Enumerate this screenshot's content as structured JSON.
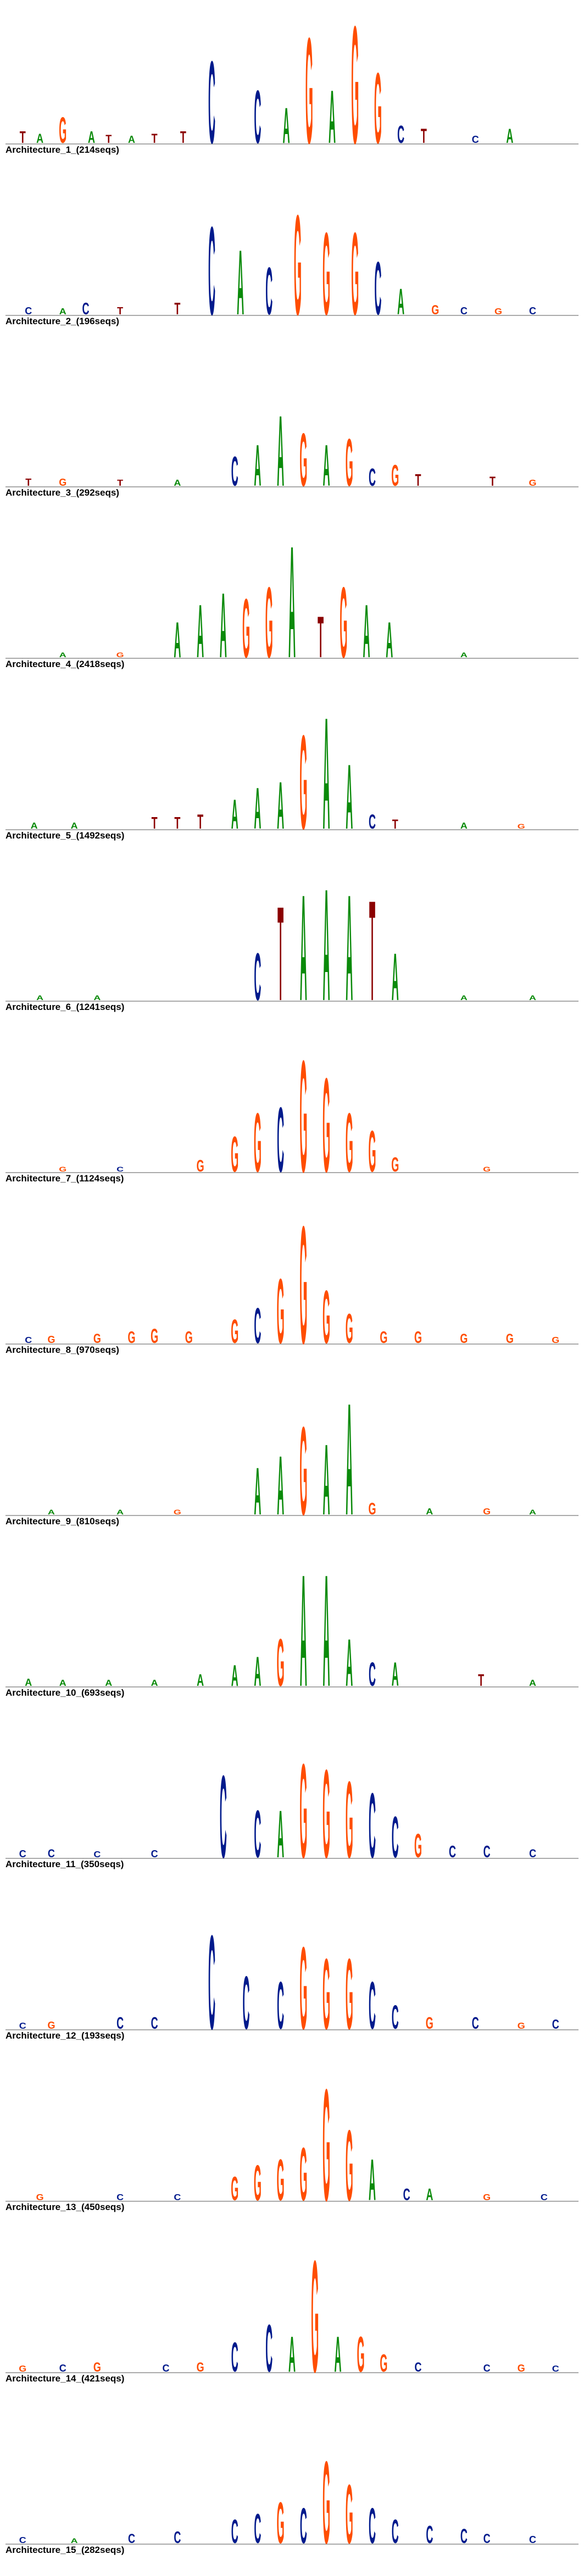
{
  "colors": {
    "A": "#0a8a0a",
    "C": "#001a8c",
    "G": "#ff4d00",
    "T": "#8b0000",
    "baseline": "#777777",
    "label": "#000000"
  },
  "architectures": [
    {
      "label": "Architecture_1_(214seqs)",
      "motif": [
        {
          "i": 10,
          "l": "G",
          "h": 0.22
        },
        {
          "i": 15,
          "l": "A",
          "h": 0.1
        },
        {
          "i": 36,
          "l": "C",
          "h": 0.7
        },
        {
          "i": 44,
          "l": "C",
          "h": 0.45
        },
        {
          "i": 49,
          "l": "A",
          "h": 0.3
        },
        {
          "i": 53,
          "l": "G",
          "h": 0.9
        },
        {
          "i": 57,
          "l": "A",
          "h": 0.45
        },
        {
          "i": 61,
          "l": "G",
          "h": 1.0
        },
        {
          "i": 65,
          "l": "G",
          "h": 0.6
        },
        {
          "i": 69,
          "l": "C",
          "h": 0.15
        },
        {
          "i": 73,
          "l": "T",
          "h": 0.12
        },
        {
          "i": 88,
          "l": "A",
          "h": 0.12
        }
      ],
      "sparse": [
        [
          3,
          "T",
          0.1
        ],
        [
          6,
          "A",
          0.08
        ],
        [
          18,
          "T",
          0.07
        ],
        [
          22,
          "A",
          0.06
        ],
        [
          26,
          "T",
          0.08
        ],
        [
          31,
          "T",
          0.1
        ],
        [
          82,
          "C",
          0.06
        ]
      ]
    },
    {
      "label": "Architecture_2_(196seqs)",
      "motif": [
        {
          "i": 14,
          "l": "C",
          "h": 0.1
        },
        {
          "i": 30,
          "l": "T",
          "h": 0.1
        },
        {
          "i": 36,
          "l": "C",
          "h": 0.75
        },
        {
          "i": 41,
          "l": "A",
          "h": 0.55
        },
        {
          "i": 46,
          "l": "C",
          "h": 0.4
        },
        {
          "i": 51,
          "l": "G",
          "h": 0.85
        },
        {
          "i": 56,
          "l": "G",
          "h": 0.7
        },
        {
          "i": 61,
          "l": "G",
          "h": 0.7
        },
        {
          "i": 65,
          "l": "C",
          "h": 0.45
        },
        {
          "i": 69,
          "l": "A",
          "h": 0.22
        },
        {
          "i": 75,
          "l": "G",
          "h": 0.08
        }
      ],
      "sparse": [
        [
          4,
          "C",
          0.06
        ],
        [
          10,
          "A",
          0.05
        ],
        [
          20,
          "T",
          0.06
        ],
        [
          80,
          "C",
          0.06
        ],
        [
          86,
          "G",
          0.05
        ],
        [
          92,
          "C",
          0.06
        ]
      ]
    },
    {
      "label": "Architecture_3_(292seqs)",
      "motif": [
        {
          "i": 40,
          "l": "C",
          "h": 0.25
        },
        {
          "i": 44,
          "l": "A",
          "h": 0.35
        },
        {
          "i": 48,
          "l": "A",
          "h": 0.6
        },
        {
          "i": 52,
          "l": "G",
          "h": 0.45
        },
        {
          "i": 56,
          "l": "A",
          "h": 0.35
        },
        {
          "i": 60,
          "l": "G",
          "h": 0.4
        },
        {
          "i": 64,
          "l": "C",
          "h": 0.15
        },
        {
          "i": 68,
          "l": "G",
          "h": 0.18
        },
        {
          "i": 72,
          "l": "T",
          "h": 0.1
        },
        {
          "i": 85,
          "l": "T",
          "h": 0.08
        }
      ],
      "sparse": [
        [
          4,
          "T",
          0.06
        ],
        [
          10,
          "G",
          0.06
        ],
        [
          20,
          "T",
          0.05
        ],
        [
          30,
          "A",
          0.05
        ],
        [
          92,
          "G",
          0.05
        ]
      ]
    },
    {
      "label": "Architecture_4_(2418seqs)",
      "motif": [
        {
          "i": 30,
          "l": "A",
          "h": 0.3
        },
        {
          "i": 34,
          "l": "A",
          "h": 0.45
        },
        {
          "i": 38,
          "l": "A",
          "h": 0.55
        },
        {
          "i": 42,
          "l": "G",
          "h": 0.5
        },
        {
          "i": 46,
          "l": "G",
          "h": 0.6
        },
        {
          "i": 50,
          "l": "A",
          "h": 0.95
        },
        {
          "i": 55,
          "l": "T",
          "h": 0.35
        },
        {
          "i": 59,
          "l": "G",
          "h": 0.6
        },
        {
          "i": 63,
          "l": "A",
          "h": 0.45
        },
        {
          "i": 67,
          "l": "A",
          "h": 0.3
        }
      ],
      "sparse": [
        [
          10,
          "A",
          0.04
        ],
        [
          20,
          "G",
          0.04
        ],
        [
          80,
          "A",
          0.04
        ]
      ]
    },
    {
      "label": "Architecture_5_(1492seqs)",
      "motif": [
        {
          "i": 26,
          "l": "T",
          "h": 0.1
        },
        {
          "i": 30,
          "l": "T",
          "h": 0.1
        },
        {
          "i": 34,
          "l": "T",
          "h": 0.12
        },
        {
          "i": 40,
          "l": "A",
          "h": 0.25
        },
        {
          "i": 44,
          "l": "A",
          "h": 0.35
        },
        {
          "i": 48,
          "l": "A",
          "h": 0.4
        },
        {
          "i": 52,
          "l": "G",
          "h": 0.8
        },
        {
          "i": 56,
          "l": "A",
          "h": 0.95
        },
        {
          "i": 60,
          "l": "A",
          "h": 0.55
        },
        {
          "i": 64,
          "l": "C",
          "h": 0.12
        },
        {
          "i": 68,
          "l": "T",
          "h": 0.08
        }
      ],
      "sparse": [
        [
          5,
          "A",
          0.05
        ],
        [
          12,
          "A",
          0.05
        ],
        [
          80,
          "A",
          0.05
        ],
        [
          90,
          "G",
          0.04
        ]
      ]
    },
    {
      "label": "Architecture_6_(1241seqs)",
      "motif": [
        {
          "i": 44,
          "l": "C",
          "h": 0.4
        },
        {
          "i": 48,
          "l": "T",
          "h": 0.8
        },
        {
          "i": 52,
          "l": "A",
          "h": 0.9
        },
        {
          "i": 56,
          "l": "A",
          "h": 0.95
        },
        {
          "i": 60,
          "l": "A",
          "h": 0.9
        },
        {
          "i": 64,
          "l": "T",
          "h": 0.85
        },
        {
          "i": 68,
          "l": "A",
          "h": 0.4
        }
      ],
      "sparse": [
        [
          6,
          "A",
          0.04
        ],
        [
          16,
          "A",
          0.04
        ],
        [
          80,
          "A",
          0.04
        ],
        [
          92,
          "A",
          0.04
        ]
      ]
    },
    {
      "label": "Architecture_7_(1124seqs)",
      "motif": [
        {
          "i": 34,
          "l": "G",
          "h": 0.1
        },
        {
          "i": 40,
          "l": "G",
          "h": 0.3
        },
        {
          "i": 44,
          "l": "G",
          "h": 0.5
        },
        {
          "i": 48,
          "l": "C",
          "h": 0.55
        },
        {
          "i": 52,
          "l": "G",
          "h": 0.95
        },
        {
          "i": 56,
          "l": "G",
          "h": 0.8
        },
        {
          "i": 60,
          "l": "G",
          "h": 0.5
        },
        {
          "i": 64,
          "l": "G",
          "h": 0.35
        },
        {
          "i": 68,
          "l": "G",
          "h": 0.12
        }
      ],
      "sparse": [
        [
          10,
          "G",
          0.04
        ],
        [
          20,
          "C",
          0.04
        ],
        [
          84,
          "G",
          0.04
        ]
      ]
    },
    {
      "label": "Architecture_8_(970seqs)",
      "motif": [
        {
          "i": 8,
          "l": "G",
          "h": 0.06
        },
        {
          "i": 16,
          "l": "G",
          "h": 0.08
        },
        {
          "i": 22,
          "l": "G",
          "h": 0.1
        },
        {
          "i": 26,
          "l": "G",
          "h": 0.12
        },
        {
          "i": 32,
          "l": "G",
          "h": 0.1
        },
        {
          "i": 40,
          "l": "G",
          "h": 0.2
        },
        {
          "i": 44,
          "l": "C",
          "h": 0.3
        },
        {
          "i": 48,
          "l": "G",
          "h": 0.55
        },
        {
          "i": 52,
          "l": "G",
          "h": 1.0
        },
        {
          "i": 56,
          "l": "G",
          "h": 0.45
        },
        {
          "i": 60,
          "l": "G",
          "h": 0.25
        },
        {
          "i": 66,
          "l": "G",
          "h": 0.1
        },
        {
          "i": 72,
          "l": "G",
          "h": 0.1
        },
        {
          "i": 80,
          "l": "G",
          "h": 0.08
        },
        {
          "i": 88,
          "l": "G",
          "h": 0.08
        }
      ],
      "sparse": [
        [
          4,
          "C",
          0.05
        ],
        [
          96,
          "G",
          0.05
        ]
      ]
    },
    {
      "label": "Architecture_9_(810seqs)",
      "motif": [
        {
          "i": 44,
          "l": "A",
          "h": 0.4
        },
        {
          "i": 48,
          "l": "A",
          "h": 0.5
        },
        {
          "i": 52,
          "l": "G",
          "h": 0.75
        },
        {
          "i": 56,
          "l": "A",
          "h": 0.6
        },
        {
          "i": 60,
          "l": "A",
          "h": 0.95
        },
        {
          "i": 64,
          "l": "G",
          "h": 0.1
        },
        {
          "i": 74,
          "l": "A",
          "h": 0.05
        },
        {
          "i": 84,
          "l": "G",
          "h": 0.05
        }
      ],
      "sparse": [
        [
          8,
          "A",
          0.04
        ],
        [
          20,
          "A",
          0.04
        ],
        [
          30,
          "G",
          0.04
        ],
        [
          92,
          "A",
          0.04
        ]
      ]
    },
    {
      "label": "Architecture_10_(693seqs)",
      "motif": [
        {
          "i": 34,
          "l": "A",
          "h": 0.1
        },
        {
          "i": 40,
          "l": "A",
          "h": 0.18
        },
        {
          "i": 44,
          "l": "A",
          "h": 0.25
        },
        {
          "i": 48,
          "l": "G",
          "h": 0.4
        },
        {
          "i": 52,
          "l": "A",
          "h": 0.95
        },
        {
          "i": 56,
          "l": "A",
          "h": 0.95
        },
        {
          "i": 60,
          "l": "A",
          "h": 0.4
        },
        {
          "i": 64,
          "l": "C",
          "h": 0.2
        },
        {
          "i": 68,
          "l": "A",
          "h": 0.2
        },
        {
          "i": 83,
          "l": "T",
          "h": 0.1
        }
      ],
      "sparse": [
        [
          4,
          "A",
          0.06
        ],
        [
          10,
          "A",
          0.05
        ],
        [
          18,
          "A",
          0.05
        ],
        [
          26,
          "A",
          0.05
        ],
        [
          92,
          "A",
          0.05
        ]
      ]
    },
    {
      "label": "Architecture_11_(350seqs)",
      "motif": [
        {
          "i": 38,
          "l": "C",
          "h": 0.7
        },
        {
          "i": 44,
          "l": "C",
          "h": 0.4
        },
        {
          "i": 48,
          "l": "A",
          "h": 0.4
        },
        {
          "i": 52,
          "l": "G",
          "h": 0.8
        },
        {
          "i": 56,
          "l": "G",
          "h": 0.75
        },
        {
          "i": 60,
          "l": "G",
          "h": 0.65
        },
        {
          "i": 64,
          "l": "C",
          "h": 0.55
        },
        {
          "i": 68,
          "l": "C",
          "h": 0.35
        },
        {
          "i": 72,
          "l": "G",
          "h": 0.2
        },
        {
          "i": 78,
          "l": "C",
          "h": 0.1
        },
        {
          "i": 84,
          "l": "C",
          "h": 0.1
        }
      ],
      "sparse": [
        [
          3,
          "C",
          0.06
        ],
        [
          8,
          "C",
          0.07
        ],
        [
          16,
          "C",
          0.05
        ],
        [
          26,
          "C",
          0.06
        ],
        [
          92,
          "C",
          0.07
        ]
      ]
    },
    {
      "label": "Architecture_12_(193seqs)",
      "motif": [
        {
          "i": 20,
          "l": "C",
          "h": 0.1
        },
        {
          "i": 26,
          "l": "C",
          "h": 0.1
        },
        {
          "i": 36,
          "l": "C",
          "h": 0.8
        },
        {
          "i": 42,
          "l": "C",
          "h": 0.45
        },
        {
          "i": 48,
          "l": "C",
          "h": 0.4
        },
        {
          "i": 52,
          "l": "G",
          "h": 0.7
        },
        {
          "i": 56,
          "l": "G",
          "h": 0.6
        },
        {
          "i": 60,
          "l": "G",
          "h": 0.6
        },
        {
          "i": 64,
          "l": "C",
          "h": 0.4
        },
        {
          "i": 68,
          "l": "C",
          "h": 0.2
        },
        {
          "i": 74,
          "l": "G",
          "h": 0.1
        },
        {
          "i": 82,
          "l": "C",
          "h": 0.1
        },
        {
          "i": 96,
          "l": "C",
          "h": 0.08
        }
      ],
      "sparse": [
        [
          3,
          "C",
          0.05
        ],
        [
          8,
          "G",
          0.06
        ],
        [
          90,
          "G",
          0.05
        ]
      ]
    },
    {
      "label": "Architecture_13_(450seqs)",
      "motif": [
        {
          "i": 40,
          "l": "G",
          "h": 0.2
        },
        {
          "i": 44,
          "l": "G",
          "h": 0.3
        },
        {
          "i": 48,
          "l": "G",
          "h": 0.35
        },
        {
          "i": 52,
          "l": "G",
          "h": 0.45
        },
        {
          "i": 56,
          "l": "G",
          "h": 0.95
        },
        {
          "i": 60,
          "l": "G",
          "h": 0.6
        },
        {
          "i": 64,
          "l": "A",
          "h": 0.35
        },
        {
          "i": 70,
          "l": "C",
          "h": 0.1
        },
        {
          "i": 74,
          "l": "A",
          "h": 0.1
        }
      ],
      "sparse": [
        [
          6,
          "G",
          0.05
        ],
        [
          20,
          "C",
          0.05
        ],
        [
          30,
          "C",
          0.05
        ],
        [
          84,
          "G",
          0.05
        ],
        [
          94,
          "C",
          0.05
        ]
      ]
    },
    {
      "label": "Architecture_14_(421seqs)",
      "motif": [
        {
          "i": 10,
          "l": "C",
          "h": 0.06
        },
        {
          "i": 16,
          "l": "G",
          "h": 0.08
        },
        {
          "i": 28,
          "l": "C",
          "h": 0.06
        },
        {
          "i": 34,
          "l": "G",
          "h": 0.08
        },
        {
          "i": 40,
          "l": "C",
          "h": 0.25
        },
        {
          "i": 46,
          "l": "C",
          "h": 0.4
        },
        {
          "i": 50,
          "l": "A",
          "h": 0.3
        },
        {
          "i": 54,
          "l": "G",
          "h": 0.95
        },
        {
          "i": 58,
          "l": "A",
          "h": 0.3
        },
        {
          "i": 62,
          "l": "G",
          "h": 0.3
        },
        {
          "i": 66,
          "l": "G",
          "h": 0.15
        },
        {
          "i": 72,
          "l": "C",
          "h": 0.08
        },
        {
          "i": 84,
          "l": "C",
          "h": 0.06
        },
        {
          "i": 90,
          "l": "G",
          "h": 0.06
        }
      ],
      "sparse": [
        [
          3,
          "G",
          0.05
        ],
        [
          96,
          "C",
          0.05
        ]
      ]
    },
    {
      "label": "Architecture_15_(282seqs)",
      "motif": [
        {
          "i": 22,
          "l": "C",
          "h": 0.08
        },
        {
          "i": 30,
          "l": "C",
          "h": 0.1
        },
        {
          "i": 40,
          "l": "C",
          "h": 0.2
        },
        {
          "i": 44,
          "l": "C",
          "h": 0.25
        },
        {
          "i": 48,
          "l": "G",
          "h": 0.35
        },
        {
          "i": 52,
          "l": "C",
          "h": 0.3
        },
        {
          "i": 56,
          "l": "G",
          "h": 0.7
        },
        {
          "i": 60,
          "l": "G",
          "h": 0.5
        },
        {
          "i": 64,
          "l": "C",
          "h": 0.3
        },
        {
          "i": 68,
          "l": "C",
          "h": 0.2
        },
        {
          "i": 74,
          "l": "C",
          "h": 0.15
        },
        {
          "i": 80,
          "l": "C",
          "h": 0.12
        },
        {
          "i": 84,
          "l": "C",
          "h": 0.08
        },
        {
          "i": 92,
          "l": "C",
          "h": 0.06
        }
      ],
      "sparse": [
        [
          3,
          "C",
          0.05
        ],
        [
          12,
          "A",
          0.04
        ]
      ]
    }
  ]
}
